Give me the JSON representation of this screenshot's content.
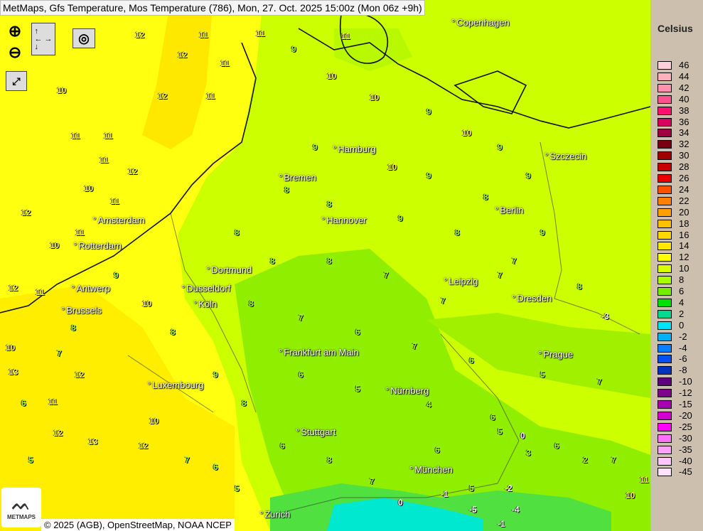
{
  "title": "MetMaps, Gfs Temperature, Mos Temperature (786), Mon, 27. Oct. 2025 15:00z (Mon 06z +9h)",
  "controls": {
    "zoom_in": "zoom-in-icon",
    "zoom_out": "zoom-out-icon",
    "pan": "pan-arrows-icon",
    "snapshot": "camera-icon",
    "fullscreen": "fullscreen-icon"
  },
  "cities": [
    "Copenhagen",
    "Szczecin",
    "Hamburg",
    "Bremen",
    "Amsterdam",
    "Rotterdam",
    "Hannover",
    "Berlin",
    "Dortmund",
    "Dusseldorf",
    "Antwerp",
    "Brussels",
    "Köln",
    "Leipzig",
    "Dresden",
    "Frankfurt am Main",
    "Prague",
    "Luxembourg",
    "Nürnberg",
    "Stuttgart",
    "München",
    "Zurich"
  ],
  "temperatures": [
    12,
    11,
    12,
    11,
    10,
    12,
    11,
    11,
    11,
    12,
    11,
    10,
    11,
    12,
    11,
    10,
    12,
    11,
    10,
    12,
    11,
    13,
    12,
    13,
    12,
    10,
    11,
    11,
    9,
    10,
    10,
    9,
    10,
    9,
    9,
    9,
    10,
    9,
    8,
    9,
    8,
    8,
    9,
    8,
    7,
    8,
    8,
    8,
    7,
    7,
    7,
    8,
    8,
    7,
    6,
    7,
    6,
    5,
    7,
    6,
    5,
    4,
    5,
    6,
    7,
    6,
    8,
    7,
    6,
    5,
    6,
    3,
    2,
    0,
    -2,
    -1,
    -5,
    -4,
    -3,
    -1,
    0,
    5,
    6,
    7,
    8,
    9,
    8,
    10,
    9,
    8,
    7,
    6,
    5,
    11,
    10
  ],
  "legend": {
    "title": "Celsius",
    "stops": [
      {
        "label": "46",
        "color": "#ffd0d8"
      },
      {
        "label": "44",
        "color": "#ffb0b8"
      },
      {
        "label": "42",
        "color": "#ff90b0"
      },
      {
        "label": "40",
        "color": "#ff5090"
      },
      {
        "label": "38",
        "color": "#ff1070"
      },
      {
        "label": "36",
        "color": "#d80060"
      },
      {
        "label": "34",
        "color": "#a00040"
      },
      {
        "label": "32",
        "color": "#780010"
      },
      {
        "label": "30",
        "color": "#a00000"
      },
      {
        "label": "28",
        "color": "#c80000"
      },
      {
        "label": "26",
        "color": "#e80000"
      },
      {
        "label": "24",
        "color": "#ff5000"
      },
      {
        "label": "22",
        "color": "#ff8000"
      },
      {
        "label": "20",
        "color": "#ffa000"
      },
      {
        "label": "18",
        "color": "#ffc000"
      },
      {
        "label": "16",
        "color": "#ffd800"
      },
      {
        "label": "14",
        "color": "#ffe800"
      },
      {
        "label": "12",
        "color": "#ffff00"
      },
      {
        "label": "10",
        "color": "#d8ff00"
      },
      {
        "label": "8",
        "color": "#a8ff00"
      },
      {
        "label": "6",
        "color": "#70f000"
      },
      {
        "label": "4",
        "color": "#00e000"
      },
      {
        "label": "2",
        "color": "#00d890"
      },
      {
        "label": "0",
        "color": "#00e0ff"
      },
      {
        "label": "-2",
        "color": "#00b0ff"
      },
      {
        "label": "-4",
        "color": "#0080ff"
      },
      {
        "label": "-6",
        "color": "#0050f0"
      },
      {
        "label": "-8",
        "color": "#0030c0"
      },
      {
        "label": "-10",
        "color": "#600080"
      },
      {
        "label": "-12",
        "color": "#800090"
      },
      {
        "label": "-15",
        "color": "#a800b0"
      },
      {
        "label": "-20",
        "color": "#d000d0"
      },
      {
        "label": "-25",
        "color": "#ff00ff"
      },
      {
        "label": "-30",
        "color": "#ff70ff"
      },
      {
        "label": "-35",
        "color": "#ffa0ff"
      },
      {
        "label": "-40",
        "color": "#ffc8ff"
      },
      {
        "label": "-45",
        "color": "#ffe0ff"
      }
    ]
  },
  "footer": "© 2025 (AGB), OpenStreetMap, NOAA NCEP",
  "logo": "METMAPS"
}
